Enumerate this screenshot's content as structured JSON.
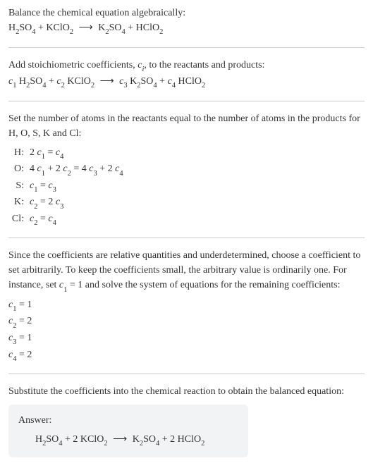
{
  "colors": {
    "text": "#333333",
    "background": "#ffffff",
    "divider": "#cccccc",
    "answer_bg": "#f1f3f5"
  },
  "typography": {
    "base_fontsize_pt": 11,
    "sub_scale": 0.75,
    "line_height": 1.5
  },
  "header": {
    "line1_pre": "Balance the chemical equation algebraically:",
    "eqn_lhs1": "H",
    "eqn_lhs1_sub": "2",
    "eqn_lhs1_tail": "SO",
    "eqn_lhs1_sub2": "4",
    "plus1": " + KClO",
    "plus1_sub": "2",
    "arrow": " ⟶ ",
    "rhs1": "K",
    "rhs1_sub": "2",
    "rhs1_tail": "SO",
    "rhs1_sub2": "4",
    "plus2": " + HClO",
    "plus2_sub": "2"
  },
  "stoich": {
    "intro_a": "Add stoichiometric coefficients, ",
    "intro_ci": "c",
    "intro_ci_sub": "i",
    "intro_b": ", to the reactants and products:",
    "c1": "c",
    "c1s": "1",
    "sp1": " H",
    "sp1s": "2",
    "sp1t": "SO",
    "sp1s2": "4",
    "plusA": " + ",
    "c2": "c",
    "c2s": "2",
    "sp2": " KClO",
    "sp2s": "2",
    "arrow": " ⟶ ",
    "c3": "c",
    "c3s": "3",
    "sp3": " K",
    "sp3s": "2",
    "sp3t": "SO",
    "sp3s2": "4",
    "plusB": " + ",
    "c4": "c",
    "c4s": "4",
    "sp4": " HClO",
    "sp4s": "2"
  },
  "atoms": {
    "intro": "Set the number of atoms in the reactants equal to the number of atoms in the products for H, O, S, K and Cl:",
    "rows": [
      {
        "el": "H:",
        "eq_pre": "2 ",
        "eq_c1": "c",
        "eq_c1s": "1",
        "eq_mid": " = ",
        "eq_c2": "c",
        "eq_c2s": "4"
      },
      {
        "el": "O:",
        "eq_pre": "4 ",
        "eq_c1": "c",
        "eq_c1s": "1",
        "eq_mid": " + 2 ",
        "eq_c2": "c",
        "eq_c2s": "2",
        "eq_mid2": " = 4 ",
        "eq_c3": "c",
        "eq_c3s": "3",
        "eq_mid3": " + 2 ",
        "eq_c4": "c",
        "eq_c4s": "4"
      },
      {
        "el": "S:",
        "eq_c1": "c",
        "eq_c1s": "1",
        "eq_mid": " = ",
        "eq_c2": "c",
        "eq_c2s": "3"
      },
      {
        "el": "K:",
        "eq_c1": "c",
        "eq_c1s": "2",
        "eq_mid": " = 2 ",
        "eq_c2": "c",
        "eq_c2s": "3"
      },
      {
        "el": "Cl:",
        "eq_c1": "c",
        "eq_c1s": "2",
        "eq_mid": " = ",
        "eq_c2": "c",
        "eq_c2s": "4"
      }
    ]
  },
  "choose": {
    "para_a": "Since the coefficients are relative quantities and underdetermined, choose a coefficient to set arbitrarily. To keep the coefficients small, the arbitrary value is ordinarily one. For instance, set ",
    "c1": "c",
    "c1s": "1",
    "para_b": " = 1 and solve the system of equations for the remaining coefficients:",
    "vals": [
      {
        "c": "c",
        "s": "1",
        "eq": " = 1"
      },
      {
        "c": "c",
        "s": "2",
        "eq": " = 2"
      },
      {
        "c": "c",
        "s": "3",
        "eq": " = 1"
      },
      {
        "c": "c",
        "s": "4",
        "eq": " = 2"
      }
    ]
  },
  "subst": {
    "para": "Substitute the coefficients into the chemical reaction to obtain the balanced equation:"
  },
  "answer": {
    "label": "Answer:",
    "lhs1": "H",
    "lhs1s": "2",
    "lhs1t": "SO",
    "lhs1s2": "4",
    "plusA": " + 2 KClO",
    "plusAs": "2",
    "arrow": " ⟶ ",
    "rhs1": "K",
    "rhs1s": "2",
    "rhs1t": "SO",
    "rhs1s2": "4",
    "plusB": " + 2 HClO",
    "plusBs": "2"
  }
}
